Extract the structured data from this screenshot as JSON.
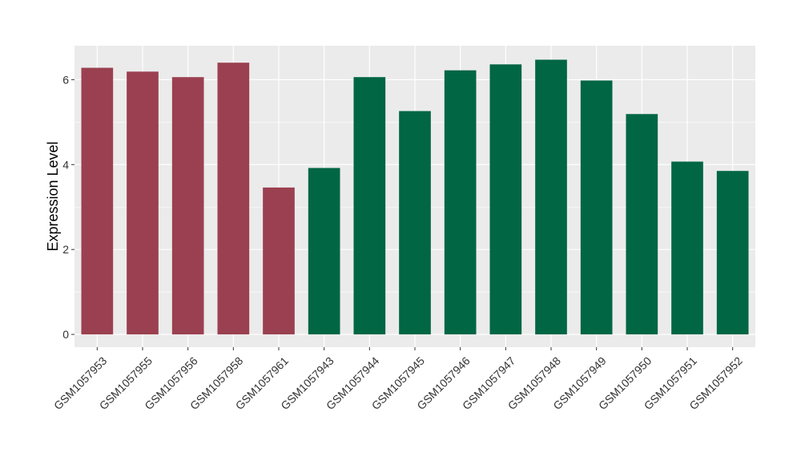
{
  "chart_data": {
    "type": "bar",
    "title": "",
    "xlabel": "",
    "ylabel": "Expression Level",
    "ylim": [
      -0.3,
      6.8
    ],
    "yticks": [
      0,
      2,
      4,
      6
    ],
    "grid": true,
    "colors": {
      "group_a": "#9B4050",
      "group_b": "#006644",
      "panel": "#EBEBEB",
      "grid": "#FFFFFF"
    },
    "categories": [
      "GSM1057953",
      "GSM1057955",
      "GSM1057956",
      "GSM1057958",
      "GSM1057961",
      "GSM1057943",
      "GSM1057944",
      "GSM1057945",
      "GSM1057946",
      "GSM1057947",
      "GSM1057948",
      "GSM1057949",
      "GSM1057950",
      "GSM1057951",
      "GSM1057952"
    ],
    "values": [
      6.28,
      6.19,
      6.06,
      6.4,
      3.46,
      3.92,
      6.06,
      5.26,
      6.22,
      6.36,
      6.47,
      5.98,
      5.19,
      4.07,
      3.85
    ],
    "groups": [
      "a",
      "a",
      "a",
      "a",
      "a",
      "b",
      "b",
      "b",
      "b",
      "b",
      "b",
      "b",
      "b",
      "b",
      "b"
    ]
  }
}
